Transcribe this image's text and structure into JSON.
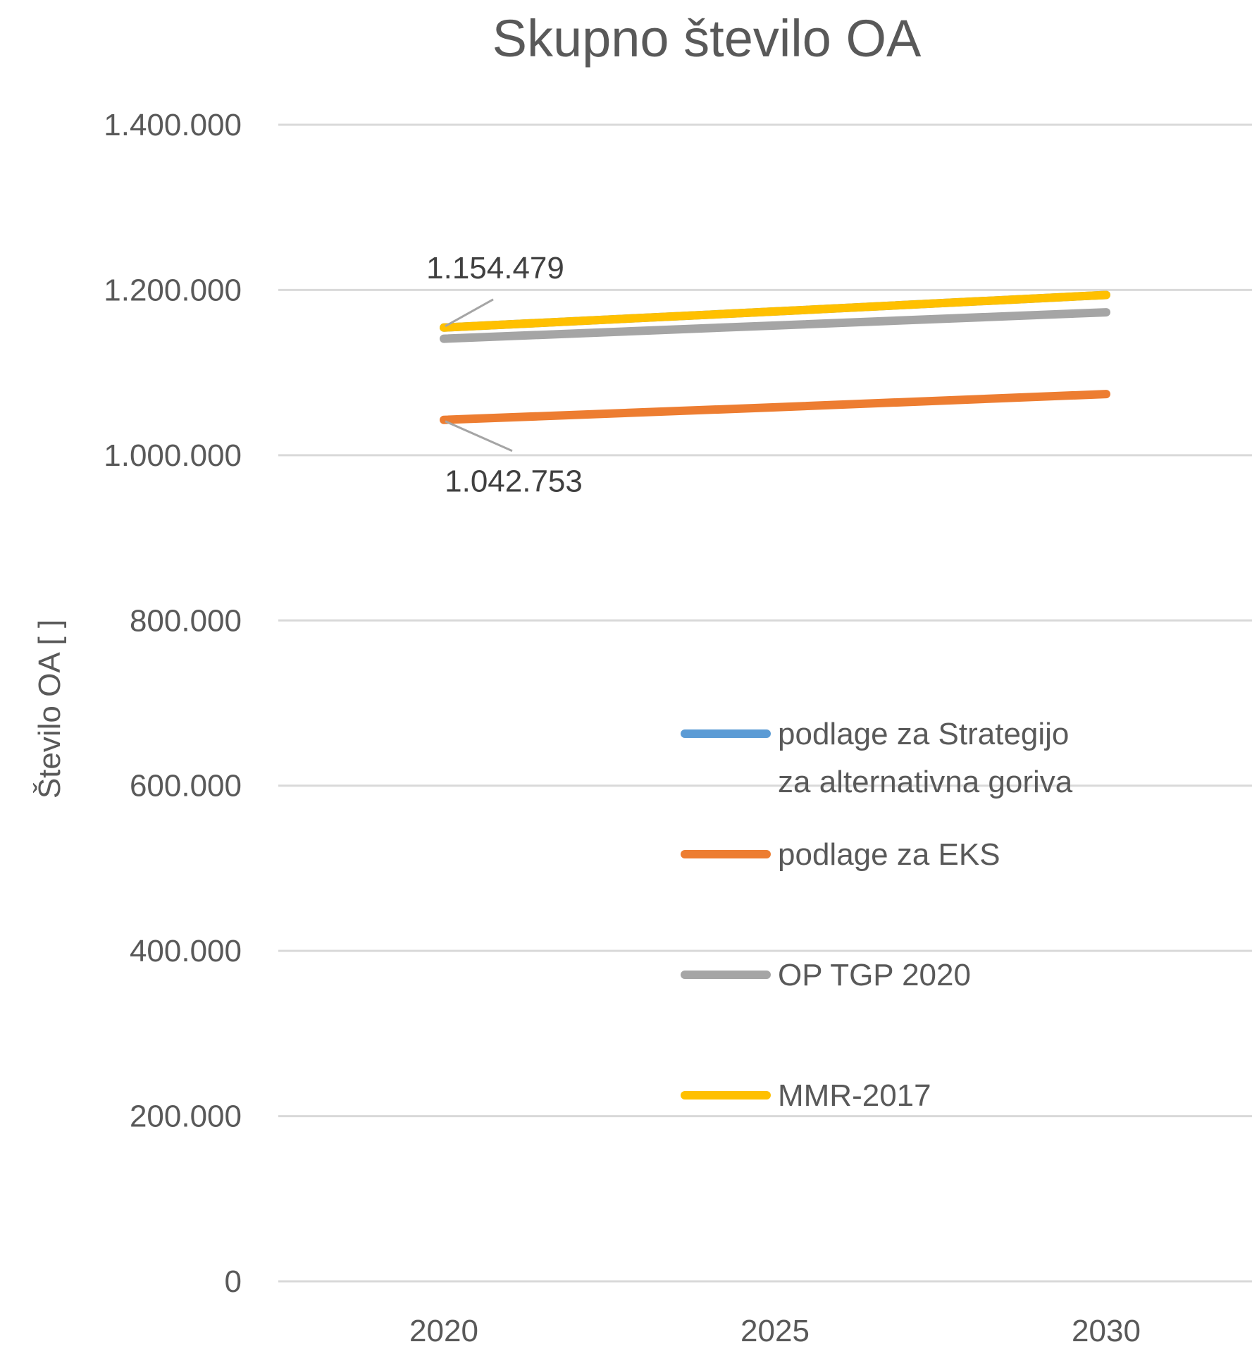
{
  "chart_data": {
    "type": "line",
    "title": "Skupno število OA",
    "xlabel": "",
    "ylabel": "Število OA [ ]",
    "categories": [
      "2020",
      "2025",
      "2030"
    ],
    "ylim": [
      0,
      1400000
    ],
    "yticks": [
      0,
      200000,
      400000,
      600000,
      800000,
      1000000,
      1200000,
      1400000
    ],
    "ytick_labels": [
      "0",
      "200.000",
      "400.000",
      "600.000",
      "800.000",
      "1.000.000",
      "1.200.000",
      "1.400.000"
    ],
    "grid": true,
    "legend_position": "right-center",
    "series": [
      {
        "name": "podlage za Strategijo za alternativna goriva",
        "legend_lines": [
          "podlage za Strategijo",
          "za alternativna goriva"
        ],
        "color": "#5B9BD5",
        "values": [
          1154479,
          1174000,
          1194000
        ]
      },
      {
        "name": "podlage za EKS",
        "legend_lines": [
          "podlage za EKS"
        ],
        "color": "#ED7D31",
        "values": [
          1042753,
          1058000,
          1074000
        ]
      },
      {
        "name": "OP TGP 2020",
        "legend_lines": [
          "OP TGP 2020"
        ],
        "color": "#A5A5A5",
        "values": [
          1141000,
          1157000,
          1173000
        ]
      },
      {
        "name": "MMR-2017",
        "legend_lines": [
          "MMR-2017"
        ],
        "color": "#FFC000",
        "values": [
          1154479,
          1174000,
          1194000
        ]
      }
    ],
    "data_labels": [
      {
        "text": "1.154.479",
        "series": 3,
        "point": 0
      },
      {
        "text": "1.042.753",
        "series": 1,
        "point": 0
      }
    ],
    "label_leader_color": "#A5A5A5"
  }
}
